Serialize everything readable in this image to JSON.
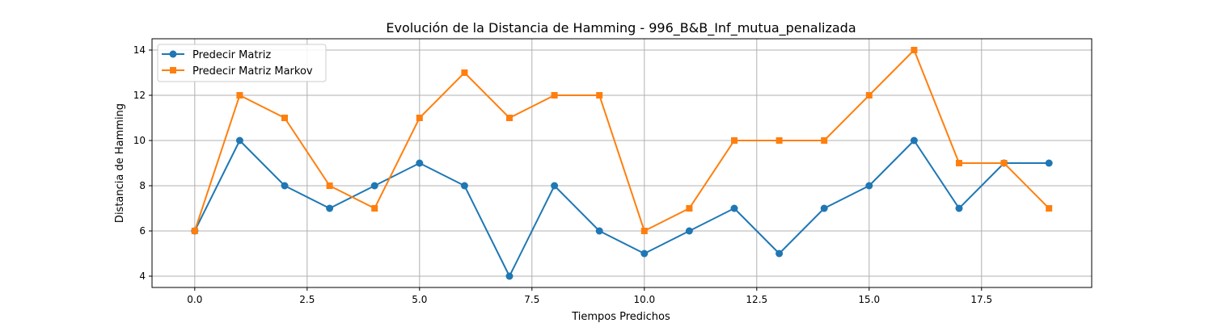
{
  "chart_data": {
    "type": "line",
    "title": "Evolución de la Distancia de Hamming - 996_B&B_Inf_mutua_penalizada",
    "xlabel": "Tiempos Predichos",
    "ylabel": "Distancia de Hamming",
    "x": [
      0,
      1,
      2,
      3,
      4,
      5,
      6,
      7,
      8,
      9,
      10,
      11,
      12,
      13,
      14,
      15,
      16,
      17,
      18,
      19
    ],
    "xlim": [
      -0.95,
      19.95
    ],
    "ylim": [
      3.5,
      14.5
    ],
    "xticks": [
      0.0,
      2.5,
      5.0,
      7.5,
      10.0,
      12.5,
      15.0,
      17.5
    ],
    "xtick_labels": [
      "0.0",
      "2.5",
      "5.0",
      "7.5",
      "10.0",
      "12.5",
      "15.0",
      "17.5"
    ],
    "yticks": [
      4,
      6,
      8,
      10,
      12,
      14
    ],
    "ytick_labels": [
      "4",
      "6",
      "8",
      "10",
      "12",
      "14"
    ],
    "grid": true,
    "legend_position": "top-left",
    "series": [
      {
        "name": "Predecir Matriz",
        "color": "#1f77b4",
        "marker": "circle",
        "values": [
          6,
          10,
          8,
          7,
          8,
          9,
          8,
          4,
          8,
          6,
          5,
          6,
          7,
          5,
          7,
          8,
          10,
          7,
          9,
          9
        ]
      },
      {
        "name": "Predecir Matriz Markov",
        "color": "#ff7f0e",
        "marker": "square",
        "values": [
          6,
          12,
          11,
          8,
          7,
          11,
          13,
          11,
          12,
          12,
          6,
          7,
          10,
          10,
          10,
          12,
          14,
          9,
          9,
          7
        ]
      }
    ]
  }
}
